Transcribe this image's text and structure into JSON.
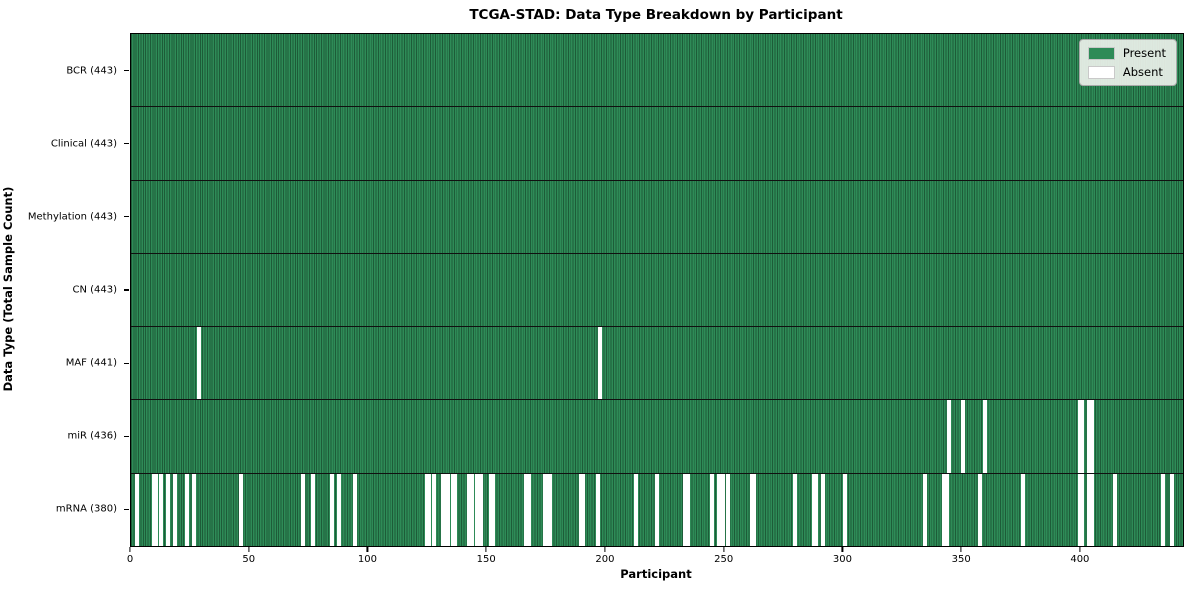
{
  "figure": {
    "title": "TCGA-STAD: Data Type Breakdown by Participant",
    "xlabel": "Participant",
    "ylabel": "Data Type (Total Sample Count)"
  },
  "colors": {
    "present": "#2e8b57",
    "present_edge": "#1d5c38",
    "absent": "#ffffff",
    "row_divider": "#101010",
    "plot_border": "#000000",
    "legend_bg": "#edf1ea",
    "legend_border": "#a9a9a9"
  },
  "chart_data": {
    "type": "heatmap",
    "title": "TCGA-STAD: Data Type Breakdown by Participant",
    "xlabel": "Participant",
    "ylabel": "Data Type (Total Sample Count)",
    "x_ticks": [
      0,
      50,
      100,
      150,
      200,
      250,
      300,
      350,
      400
    ],
    "x_range": [
      0,
      443
    ],
    "n_participants": 443,
    "grid": false,
    "legend_position": "upper right",
    "legend": [
      {
        "label": "Present",
        "color": "#2e8b57"
      },
      {
        "label": "Absent",
        "color": "#ffffff"
      }
    ],
    "rows": [
      {
        "key": "bcr",
        "label": "BCR (443)",
        "data_type": "BCR",
        "present_count": 443,
        "absent_count": 0,
        "absent_participants": []
      },
      {
        "key": "clinical",
        "label": "Clinical (443)",
        "data_type": "Clinical",
        "present_count": 443,
        "absent_count": 0,
        "absent_participants": []
      },
      {
        "key": "methylation",
        "label": "Methylation (443)",
        "data_type": "Methylation",
        "present_count": 443,
        "absent_count": 0,
        "absent_participants": []
      },
      {
        "key": "cn",
        "label": "CN (443)",
        "data_type": "CN",
        "present_count": 443,
        "absent_count": 0,
        "absent_participants": []
      },
      {
        "key": "maf",
        "label": "MAF (441)",
        "data_type": "MAF",
        "present_count": 441,
        "absent_count": 2,
        "absent_participants": [
          28,
          197
        ]
      },
      {
        "key": "mir",
        "label": "miR (436)",
        "data_type": "miR",
        "present_count": 436,
        "absent_count": 7,
        "absent_participants": [
          344,
          350,
          359,
          399,
          400,
          403,
          404
        ]
      },
      {
        "key": "mrna",
        "label": "mRNA (380)",
        "data_type": "mRNA",
        "present_count": 380,
        "absent_count": 63,
        "absent_participants": [
          2,
          9,
          10,
          12,
          15,
          18,
          23,
          26,
          46,
          72,
          76,
          84,
          87,
          94,
          124,
          125,
          127,
          131,
          132,
          133,
          135,
          136,
          142,
          143,
          145,
          147,
          151,
          152,
          166,
          167,
          174,
          175,
          176,
          189,
          190,
          196,
          212,
          221,
          233,
          234,
          244,
          247,
          249,
          251,
          261,
          262,
          279,
          287,
          288,
          291,
          300,
          334,
          342,
          343,
          357,
          375,
          399,
          400,
          403,
          404,
          414,
          434,
          438
        ]
      }
    ]
  }
}
